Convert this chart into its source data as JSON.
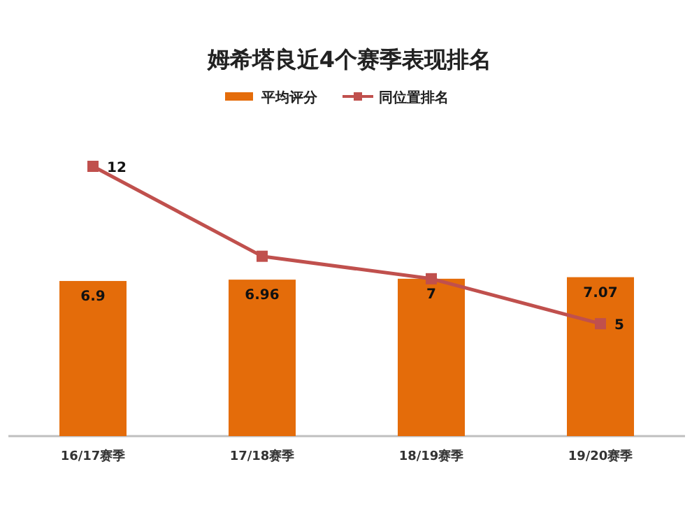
{
  "chart_data": {
    "type": "bar",
    "title": "姆希塔良近4个赛季表现排名",
    "categories": [
      "16/17赛季",
      "17/18赛季",
      "18/19赛季",
      "19/20赛季"
    ],
    "series": [
      {
        "name": "平均评分",
        "color": "#e46c0a",
        "values": [
          6.9,
          6.96,
          7,
          7.07
        ],
        "value_labels": [
          "6.9",
          "6.96",
          "7",
          "7.07"
        ]
      },
      {
        "name": "同位置排名",
        "type": "line",
        "color": "#c0504d",
        "values": [
          12,
          8,
          7,
          5
        ],
        "value_labels": [
          "12",
          null,
          null,
          "5"
        ]
      }
    ],
    "tick_labels": "x",
    "legend": "top",
    "marker": "square",
    "line_style": "solid"
  }
}
